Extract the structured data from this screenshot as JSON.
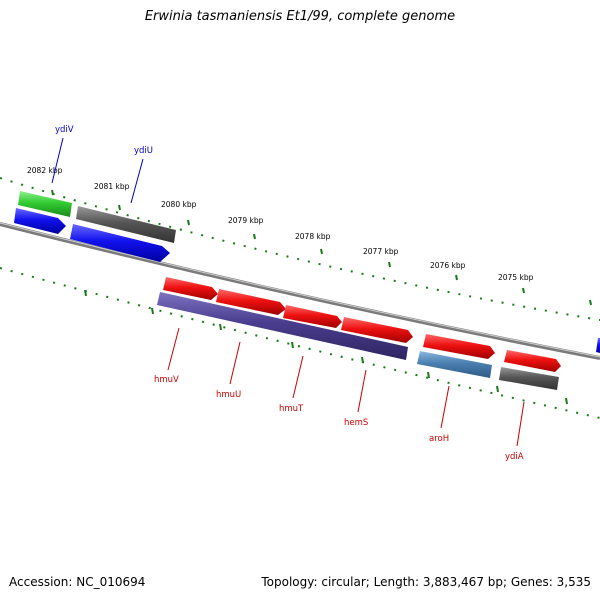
{
  "title": "Erwinia tasmaniensis Et1/99, complete genome",
  "footer": {
    "accession": "Accession: NC_010694",
    "summary": "Topology: circular; Length: 3,883,467 bp; Genes: 3,535"
  },
  "scale_labels": [
    "2082 kbp",
    "2081 kbp",
    "2080 kbp",
    "2079 kbp",
    "2078 kbp",
    "2077 kbp",
    "2076 kbp",
    "2075 kbp"
  ],
  "genes_top": [
    {
      "name": "ydiV",
      "color": "#0000cc"
    },
    {
      "name": "ydiU",
      "color": "#0000cc"
    }
  ],
  "genes_bottom": [
    {
      "name": "hmuV",
      "color": "#cc0000"
    },
    {
      "name": "hmuU",
      "color": "#cc0000"
    },
    {
      "name": "hmuT",
      "color": "#cc0000"
    },
    {
      "name": "hemS",
      "color": "#cc0000"
    },
    {
      "name": "aroH",
      "color": "#cc0000"
    },
    {
      "name": "ydiA",
      "color": "#cc0000"
    }
  ],
  "colors": {
    "backbone": "#7a7a7a",
    "tick": "#1a7a1a",
    "forward_cds": "#ee1111",
    "reverse_cds": "#1111ee",
    "green_cds": "#33cc33",
    "gray_cds": "#555555",
    "purple_cds": "#4a3d8f",
    "steel_cds": "#4a7fb0"
  }
}
